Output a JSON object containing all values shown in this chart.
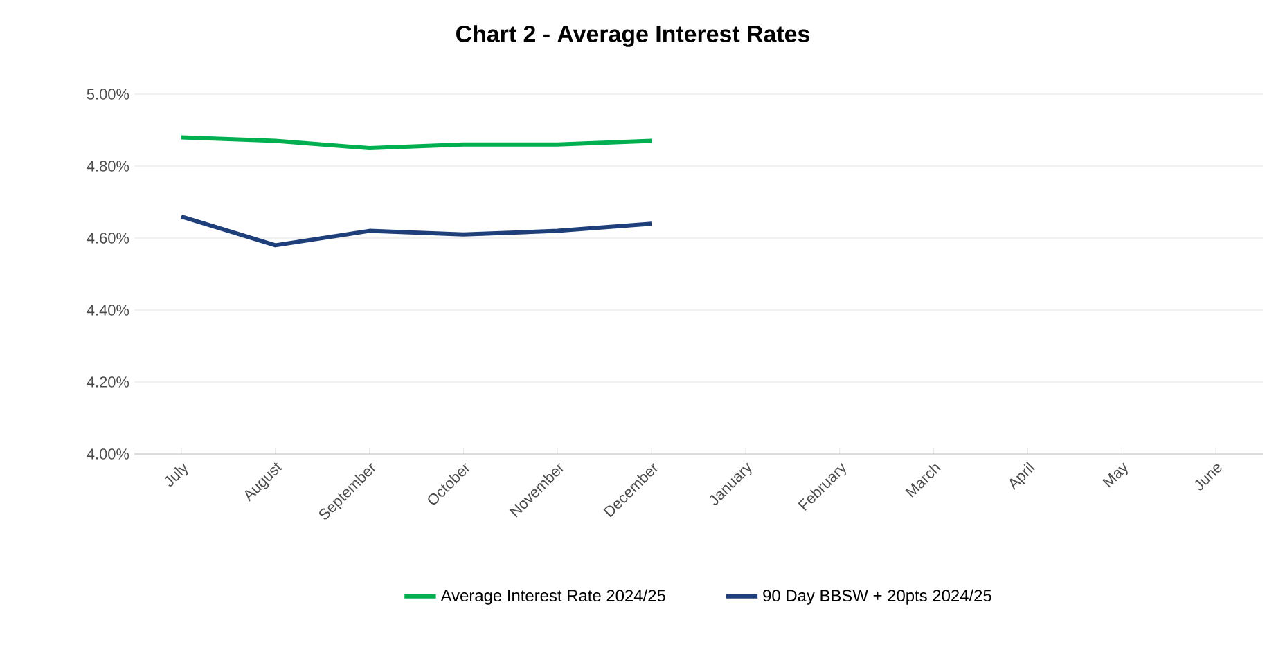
{
  "chart_data": {
    "type": "line",
    "title": "Chart 2 - Average Interest Rates",
    "categories": [
      "July",
      "August",
      "September",
      "October",
      "November",
      "December",
      "January",
      "February",
      "March",
      "April",
      "May",
      "June"
    ],
    "series": [
      {
        "name": "Average Interest Rate 2024/25",
        "color": "#00b050",
        "values": [
          4.88,
          4.87,
          4.85,
          4.86,
          4.86,
          4.87,
          null,
          null,
          null,
          null,
          null,
          null
        ]
      },
      {
        "name": "90 Day BBSW + 20pts 2024/25",
        "color": "#1f3f7a",
        "values": [
          4.66,
          4.58,
          4.62,
          4.61,
          4.62,
          4.64,
          null,
          null,
          null,
          null,
          null,
          null
        ]
      }
    ],
    "ylim": [
      4.0,
      5.0
    ],
    "yticks": [
      {
        "value": 4.0,
        "label": "4.00%"
      },
      {
        "value": 4.2,
        "label": "4.20%"
      },
      {
        "value": 4.4,
        "label": "4.40%"
      },
      {
        "value": 4.6,
        "label": "4.60%"
      },
      {
        "value": 4.8,
        "label": "4.80%"
      },
      {
        "value": 5.0,
        "label": "5.00%"
      }
    ],
    "grid": "y",
    "legend": "bottom"
  }
}
